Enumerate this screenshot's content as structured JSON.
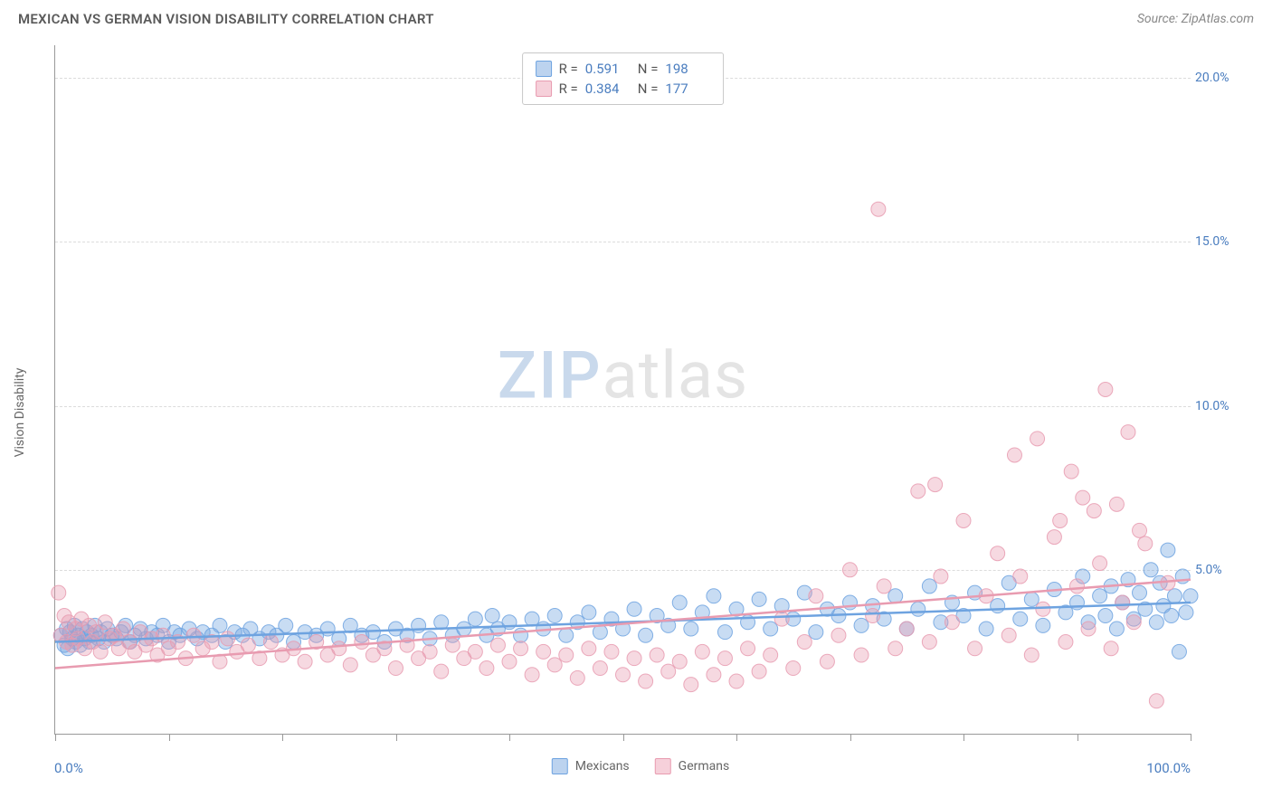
{
  "header": {
    "title": "MEXICAN VS GERMAN VISION DISABILITY CORRELATION CHART",
    "source": "Source: ZipAtlas.com"
  },
  "watermark": {
    "part1": "ZIP",
    "part2": "atlas"
  },
  "chart": {
    "type": "scatter",
    "ylabel": "Vision Disability",
    "xlim": [
      0,
      100
    ],
    "ylim": [
      0,
      21
    ],
    "background_color": "#ffffff",
    "grid_color": "#dcdcdc",
    "axis_color": "#999999",
    "text_color": "#666666",
    "value_color": "#4a7dbf",
    "xticks": [
      0,
      10,
      20,
      30,
      40,
      50,
      60,
      70,
      80,
      90,
      100
    ],
    "xtick_labels": {
      "left": "0.0%",
      "right": "100.0%"
    },
    "yticks": [
      {
        "value": 5,
        "label": "5.0%"
      },
      {
        "value": 10,
        "label": "10.0%"
      },
      {
        "value": 15,
        "label": "15.0%"
      },
      {
        "value": 20,
        "label": "20.0%"
      }
    ],
    "marker": {
      "radius": 8,
      "fill_opacity": 0.38,
      "stroke_opacity": 0.85,
      "stroke_width": 1
    },
    "trend_line_width": 2.5,
    "series": [
      {
        "name": "Mexicans",
        "color": "#6ea3e0",
        "swatch_fill": "#bcd3ef",
        "swatch_border": "#6ea3e0",
        "R": "0.591",
        "N": "198",
        "trend": {
          "y_at_x0": 2.8,
          "y_at_x100": 4.0
        },
        "points": [
          [
            0.5,
            3.0
          ],
          [
            0.8,
            2.7
          ],
          [
            1.0,
            3.2
          ],
          [
            1.1,
            2.6
          ],
          [
            1.3,
            3.1
          ],
          [
            1.5,
            2.9
          ],
          [
            1.7,
            3.3
          ],
          [
            1.8,
            2.8
          ],
          [
            2.0,
            3.0
          ],
          [
            2.2,
            2.7
          ],
          [
            2.4,
            3.2
          ],
          [
            2.6,
            2.9
          ],
          [
            2.8,
            3.1
          ],
          [
            3.0,
            2.8
          ],
          [
            3.2,
            3.0
          ],
          [
            3.5,
            3.3
          ],
          [
            3.8,
            2.9
          ],
          [
            4.0,
            3.1
          ],
          [
            4.3,
            2.8
          ],
          [
            4.6,
            3.2
          ],
          [
            5.0,
            3.0
          ],
          [
            5.4,
            2.9
          ],
          [
            5.8,
            3.1
          ],
          [
            6.2,
            3.3
          ],
          [
            6.6,
            2.8
          ],
          [
            7.0,
            3.0
          ],
          [
            7.5,
            3.2
          ],
          [
            8.0,
            2.9
          ],
          [
            8.5,
            3.1
          ],
          [
            9.0,
            3.0
          ],
          [
            9.5,
            3.3
          ],
          [
            10.0,
            2.8
          ],
          [
            10.5,
            3.1
          ],
          [
            11.0,
            3.0
          ],
          [
            11.8,
            3.2
          ],
          [
            12.5,
            2.9
          ],
          [
            13.0,
            3.1
          ],
          [
            13.8,
            3.0
          ],
          [
            14.5,
            3.3
          ],
          [
            15.0,
            2.8
          ],
          [
            15.8,
            3.1
          ],
          [
            16.5,
            3.0
          ],
          [
            17.2,
            3.2
          ],
          [
            18.0,
            2.9
          ],
          [
            18.8,
            3.1
          ],
          [
            19.5,
            3.0
          ],
          [
            20.3,
            3.3
          ],
          [
            21.0,
            2.8
          ],
          [
            22.0,
            3.1
          ],
          [
            23.0,
            3.0
          ],
          [
            24.0,
            3.2
          ],
          [
            25.0,
            2.9
          ],
          [
            26.0,
            3.3
          ],
          [
            27.0,
            3.0
          ],
          [
            28.0,
            3.1
          ],
          [
            29.0,
            2.8
          ],
          [
            30.0,
            3.2
          ],
          [
            31.0,
            3.0
          ],
          [
            32.0,
            3.3
          ],
          [
            33.0,
            2.9
          ],
          [
            34.0,
            3.4
          ],
          [
            35.0,
            3.0
          ],
          [
            36.0,
            3.2
          ],
          [
            37.0,
            3.5
          ],
          [
            38.0,
            3.0
          ],
          [
            38.5,
            3.6
          ],
          [
            39.0,
            3.2
          ],
          [
            40.0,
            3.4
          ],
          [
            41.0,
            3.0
          ],
          [
            42.0,
            3.5
          ],
          [
            43.0,
            3.2
          ],
          [
            44.0,
            3.6
          ],
          [
            45.0,
            3.0
          ],
          [
            46.0,
            3.4
          ],
          [
            47.0,
            3.7
          ],
          [
            48.0,
            3.1
          ],
          [
            49.0,
            3.5
          ],
          [
            50.0,
            3.2
          ],
          [
            51.0,
            3.8
          ],
          [
            52.0,
            3.0
          ],
          [
            53.0,
            3.6
          ],
          [
            54.0,
            3.3
          ],
          [
            55.0,
            4.0
          ],
          [
            56.0,
            3.2
          ],
          [
            57.0,
            3.7
          ],
          [
            58.0,
            4.2
          ],
          [
            59.0,
            3.1
          ],
          [
            60.0,
            3.8
          ],
          [
            61.0,
            3.4
          ],
          [
            62.0,
            4.1
          ],
          [
            63.0,
            3.2
          ],
          [
            64.0,
            3.9
          ],
          [
            65.0,
            3.5
          ],
          [
            66.0,
            4.3
          ],
          [
            67.0,
            3.1
          ],
          [
            68.0,
            3.8
          ],
          [
            69.0,
            3.6
          ],
          [
            70.0,
            4.0
          ],
          [
            71.0,
            3.3
          ],
          [
            72.0,
            3.9
          ],
          [
            73.0,
            3.5
          ],
          [
            74.0,
            4.2
          ],
          [
            75.0,
            3.2
          ],
          [
            76.0,
            3.8
          ],
          [
            77.0,
            4.5
          ],
          [
            78.0,
            3.4
          ],
          [
            79.0,
            4.0
          ],
          [
            80.0,
            3.6
          ],
          [
            81.0,
            4.3
          ],
          [
            82.0,
            3.2
          ],
          [
            83.0,
            3.9
          ],
          [
            84.0,
            4.6
          ],
          [
            85.0,
            3.5
          ],
          [
            86.0,
            4.1
          ],
          [
            87.0,
            3.3
          ],
          [
            88.0,
            4.4
          ],
          [
            89.0,
            3.7
          ],
          [
            90.0,
            4.0
          ],
          [
            90.5,
            4.8
          ],
          [
            91.0,
            3.4
          ],
          [
            92.0,
            4.2
          ],
          [
            92.5,
            3.6
          ],
          [
            93.0,
            4.5
          ],
          [
            93.5,
            3.2
          ],
          [
            94.0,
            4.0
          ],
          [
            94.5,
            4.7
          ],
          [
            95.0,
            3.5
          ],
          [
            95.5,
            4.3
          ],
          [
            96.0,
            3.8
          ],
          [
            96.5,
            5.0
          ],
          [
            97.0,
            3.4
          ],
          [
            97.3,
            4.6
          ],
          [
            97.6,
            3.9
          ],
          [
            98.0,
            5.6
          ],
          [
            98.3,
            3.6
          ],
          [
            98.6,
            4.2
          ],
          [
            99.0,
            2.5
          ],
          [
            99.3,
            4.8
          ],
          [
            99.6,
            3.7
          ],
          [
            100.0,
            4.2
          ]
        ]
      },
      {
        "name": "Germans",
        "color": "#e89bb0",
        "swatch_fill": "#f6d0da",
        "swatch_border": "#e89bb0",
        "R": "0.384",
        "N": "177",
        "trend": {
          "y_at_x0": 2.0,
          "y_at_x100": 4.7
        },
        "points": [
          [
            0.3,
            4.3
          ],
          [
            0.5,
            3.0
          ],
          [
            0.8,
            3.6
          ],
          [
            1.0,
            2.8
          ],
          [
            1.2,
            3.4
          ],
          [
            1.5,
            2.7
          ],
          [
            1.8,
            3.2
          ],
          [
            2.0,
            2.9
          ],
          [
            2.3,
            3.5
          ],
          [
            2.6,
            2.6
          ],
          [
            3.0,
            3.3
          ],
          [
            3.3,
            2.8
          ],
          [
            3.6,
            3.1
          ],
          [
            4.0,
            2.5
          ],
          [
            4.4,
            3.4
          ],
          [
            4.8,
            2.9
          ],
          [
            5.2,
            3.0
          ],
          [
            5.6,
            2.6
          ],
          [
            6.0,
            3.2
          ],
          [
            6.5,
            2.8
          ],
          [
            7.0,
            2.5
          ],
          [
            7.5,
            3.1
          ],
          [
            8.0,
            2.7
          ],
          [
            8.5,
            2.9
          ],
          [
            9.0,
            2.4
          ],
          [
            9.5,
            3.0
          ],
          [
            10.0,
            2.6
          ],
          [
            10.8,
            2.8
          ],
          [
            11.5,
            2.3
          ],
          [
            12.2,
            3.0
          ],
          [
            13.0,
            2.6
          ],
          [
            13.8,
            2.8
          ],
          [
            14.5,
            2.2
          ],
          [
            15.2,
            2.9
          ],
          [
            16.0,
            2.5
          ],
          [
            17.0,
            2.7
          ],
          [
            18.0,
            2.3
          ],
          [
            19.0,
            2.8
          ],
          [
            20.0,
            2.4
          ],
          [
            21.0,
            2.6
          ],
          [
            22.0,
            2.2
          ],
          [
            23.0,
            2.8
          ],
          [
            24.0,
            2.4
          ],
          [
            25.0,
            2.6
          ],
          [
            26.0,
            2.1
          ],
          [
            27.0,
            2.8
          ],
          [
            28.0,
            2.4
          ],
          [
            29.0,
            2.6
          ],
          [
            30.0,
            2.0
          ],
          [
            31.0,
            2.7
          ],
          [
            32.0,
            2.3
          ],
          [
            33.0,
            2.5
          ],
          [
            34.0,
            1.9
          ],
          [
            35.0,
            2.7
          ],
          [
            36.0,
            2.3
          ],
          [
            37.0,
            2.5
          ],
          [
            38.0,
            2.0
          ],
          [
            39.0,
            2.7
          ],
          [
            40.0,
            2.2
          ],
          [
            41.0,
            2.6
          ],
          [
            42.0,
            1.8
          ],
          [
            43.0,
            2.5
          ],
          [
            44.0,
            2.1
          ],
          [
            45.0,
            2.4
          ],
          [
            46.0,
            1.7
          ],
          [
            47.0,
            2.6
          ],
          [
            48.0,
            2.0
          ],
          [
            49.0,
            2.5
          ],
          [
            50.0,
            1.8
          ],
          [
            51.0,
            2.3
          ],
          [
            52.0,
            1.6
          ],
          [
            53.0,
            2.4
          ],
          [
            54.0,
            1.9
          ],
          [
            55.0,
            2.2
          ],
          [
            56.0,
            1.5
          ],
          [
            57.0,
            2.5
          ],
          [
            58.0,
            1.8
          ],
          [
            59.0,
            2.3
          ],
          [
            60.0,
            1.6
          ],
          [
            61.0,
            2.6
          ],
          [
            62.0,
            1.9
          ],
          [
            63.0,
            2.4
          ],
          [
            64.0,
            3.5
          ],
          [
            65.0,
            2.0
          ],
          [
            66.0,
            2.8
          ],
          [
            67.0,
            4.2
          ],
          [
            68.0,
            2.2
          ],
          [
            69.0,
            3.0
          ],
          [
            70.0,
            5.0
          ],
          [
            71.0,
            2.4
          ],
          [
            72.0,
            3.6
          ],
          [
            72.5,
            16.0
          ],
          [
            73.0,
            4.5
          ],
          [
            74.0,
            2.6
          ],
          [
            75.0,
            3.2
          ],
          [
            76.0,
            7.4
          ],
          [
            77.0,
            2.8
          ],
          [
            77.5,
            7.6
          ],
          [
            78.0,
            4.8
          ],
          [
            79.0,
            3.4
          ],
          [
            80.0,
            6.5
          ],
          [
            81.0,
            2.6
          ],
          [
            82.0,
            4.2
          ],
          [
            83.0,
            5.5
          ],
          [
            84.0,
            3.0
          ],
          [
            84.5,
            8.5
          ],
          [
            85.0,
            4.8
          ],
          [
            86.0,
            2.4
          ],
          [
            86.5,
            9.0
          ],
          [
            87.0,
            3.8
          ],
          [
            88.0,
            6.0
          ],
          [
            88.5,
            6.5
          ],
          [
            89.0,
            2.8
          ],
          [
            89.5,
            8.0
          ],
          [
            90.0,
            4.5
          ],
          [
            90.5,
            7.2
          ],
          [
            91.0,
            3.2
          ],
          [
            91.5,
            6.8
          ],
          [
            92.0,
            5.2
          ],
          [
            92.5,
            10.5
          ],
          [
            93.0,
            2.6
          ],
          [
            93.5,
            7.0
          ],
          [
            94.0,
            4.0
          ],
          [
            94.5,
            9.2
          ],
          [
            95.0,
            3.4
          ],
          [
            95.5,
            6.2
          ],
          [
            96.0,
            5.8
          ],
          [
            97.0,
            1.0
          ],
          [
            98.0,
            4.6
          ]
        ]
      }
    ],
    "bottom_legend": [
      {
        "label": "Mexicans",
        "series_index": 0
      },
      {
        "label": "Germans",
        "series_index": 1
      }
    ]
  }
}
